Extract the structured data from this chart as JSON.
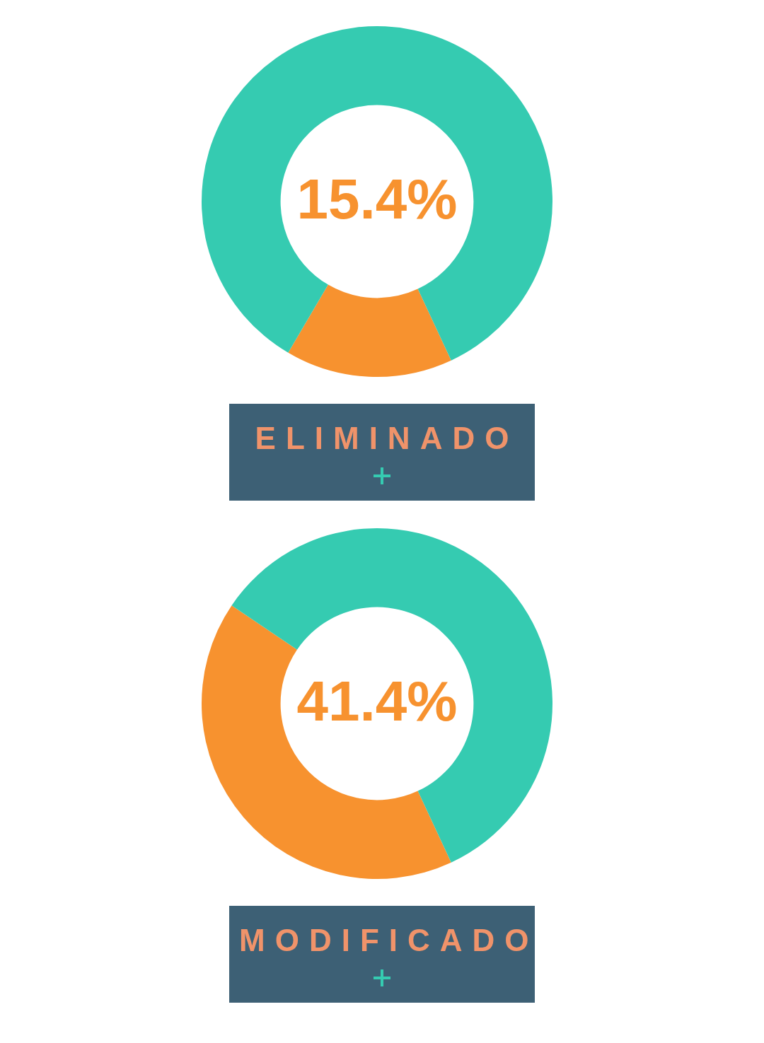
{
  "chart_data": [
    {
      "type": "donut",
      "title": "ELIMINADO",
      "categories": [
        null,
        null
      ],
      "values": [
        15.4,
        84.6
      ],
      "colors": [
        "#f7922f",
        "#35cbb1"
      ],
      "annotations": [
        "15.4%"
      ]
    },
    {
      "type": "donut",
      "title": "MODIFICADO",
      "categories": [
        null,
        null
      ],
      "values": [
        41.4,
        58.6
      ],
      "colors": [
        "#f7922f",
        "#35cbb1"
      ],
      "annotations": [
        "41.4%"
      ]
    }
  ]
}
